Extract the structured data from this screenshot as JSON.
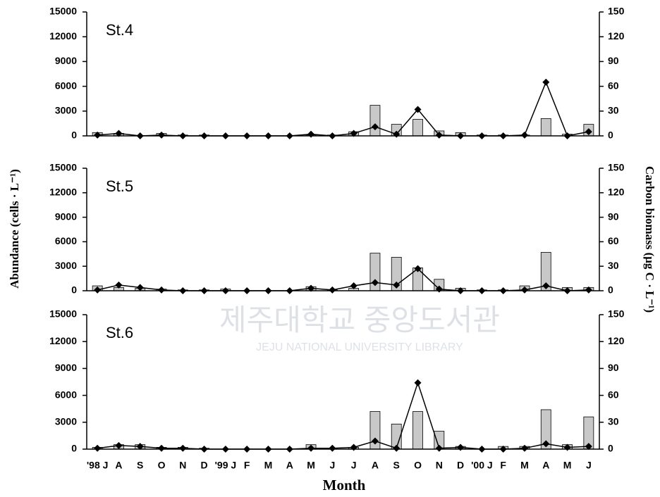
{
  "ylabel": "Abundance (cells · L⁻¹)",
  "y2label": "Carbon biomass (μg C · L⁻¹)",
  "xlabel": "Month",
  "watermark": [
    "제주대학교 중앙도서관",
    "JEJU NATIONAL UNIVERSITY LIBRARY"
  ],
  "chart_data": [
    {
      "type": "bar",
      "title": "St.4",
      "ylim": [
        0,
        15000
      ],
      "yticks": [
        0,
        3000,
        6000,
        9000,
        12000,
        15000
      ],
      "y2lim": [
        0,
        150
      ],
      "y2ticks": [
        0,
        30,
        60,
        90,
        120,
        150
      ],
      "series": [
        {
          "color": "#c8c8c8",
          "values": [
            400,
            300,
            0,
            300,
            100,
            100,
            0,
            0,
            0,
            0,
            100,
            100,
            500,
            3700,
            1400,
            2000,
            600,
            400,
            100,
            100,
            100,
            2100,
            200,
            1400
          ]
        },
        {
          "type": "line",
          "axis": "y2",
          "color": "#000000",
          "values": [
            1,
            3,
            0,
            1,
            0,
            0,
            0,
            0,
            0,
            0,
            2,
            0,
            3,
            11,
            2,
            32,
            1,
            0,
            0,
            0,
            1,
            65,
            0,
            5
          ]
        }
      ]
    },
    {
      "type": "bar",
      "title": "St.5",
      "ylim": [
        0,
        15000
      ],
      "yticks": [
        0,
        3000,
        6000,
        9000,
        12000,
        15000
      ],
      "y2lim": [
        0,
        150
      ],
      "y2ticks": [
        0,
        30,
        60,
        90,
        120,
        150
      ],
      "series": [
        {
          "color": "#c8c8c8",
          "values": [
            600,
            400,
            300,
            200,
            100,
            100,
            200,
            0,
            0,
            0,
            500,
            100,
            300,
            4600,
            4100,
            2800,
            1400,
            300,
            100,
            100,
            600,
            4700,
            400,
            400
          ]
        },
        {
          "type": "line",
          "axis": "y2",
          "color": "#000000",
          "values": [
            1,
            7,
            4,
            1,
            0,
            0,
            0,
            0,
            0,
            0,
            3,
            1,
            6,
            10,
            7,
            27,
            2,
            0,
            0,
            0,
            1,
            6,
            0,
            1
          ]
        }
      ]
    },
    {
      "type": "bar",
      "title": "St.6",
      "categories": [
        "'98 J",
        "A",
        "S",
        "O",
        "N",
        "D",
        "'99 J",
        "F",
        "M",
        "A",
        "M",
        "J",
        "J",
        "A",
        "S",
        "O",
        "N",
        "D",
        "'00 J",
        "F",
        "M",
        "A",
        "M",
        "J"
      ],
      "ylim": [
        0,
        15000
      ],
      "yticks": [
        0,
        3000,
        6000,
        9000,
        12000,
        15000
      ],
      "y2lim": [
        0,
        150
      ],
      "y2ticks": [
        0,
        30,
        60,
        90,
        120,
        150
      ],
      "series": [
        {
          "color": "#c8c8c8",
          "values": [
            200,
            500,
            500,
            200,
            200,
            100,
            0,
            0,
            0,
            0,
            500,
            100,
            200,
            4200,
            2800,
            4200,
            2000,
            300,
            0,
            300,
            300,
            4400,
            500,
            3600
          ]
        },
        {
          "type": "line",
          "axis": "y2",
          "color": "#000000",
          "values": [
            1,
            4,
            3,
            1,
            1,
            0,
            0,
            0,
            0,
            0,
            1,
            1,
            2,
            9,
            1,
            74,
            1,
            2,
            0,
            0,
            1,
            6,
            2,
            3
          ]
        }
      ]
    }
  ]
}
